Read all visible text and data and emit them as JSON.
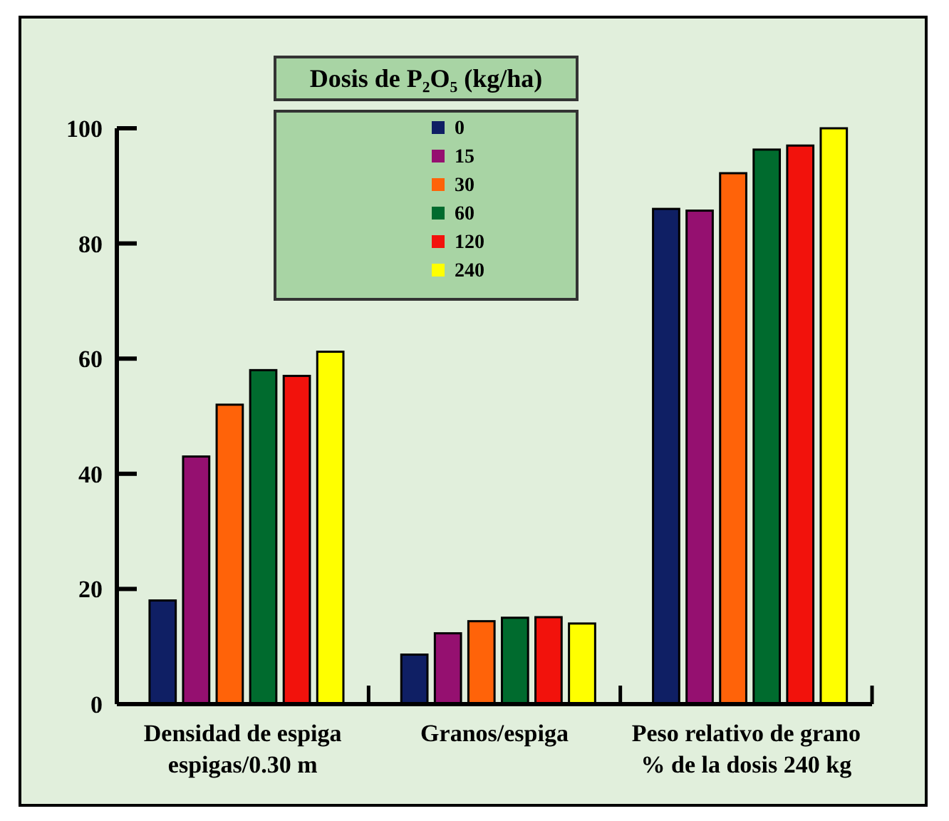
{
  "chart_data": {
    "type": "bar",
    "legend_title": "Dosis de P₂O₅ (kg/ha)",
    "legend": "top",
    "grid": false,
    "categories": [
      "Densidad de espiga\nespigas/0.30 m",
      "Granos/espiga",
      "Peso relativo de grano\n% de la dosis 240 kg"
    ],
    "ylim": [
      0,
      100
    ],
    "yticks": [
      0,
      20,
      40,
      60,
      80,
      100
    ],
    "series": [
      {
        "name": "0",
        "color": "#0f1f64",
        "values": [
          18,
          8.6,
          86
        ]
      },
      {
        "name": "15",
        "color": "#951070",
        "values": [
          43,
          12.3,
          85.7
        ]
      },
      {
        "name": "30",
        "color": "#ff6309",
        "values": [
          52,
          14.4,
          92.2
        ]
      },
      {
        "name": "60",
        "color": "#006b2e",
        "values": [
          58,
          15,
          96.3
        ]
      },
      {
        "name": "120",
        "color": "#f2120c",
        "values": [
          57,
          15.1,
          97
        ]
      },
      {
        "name": "240",
        "color": "#ffff00",
        "values": [
          61.2,
          14,
          100
        ]
      }
    ]
  }
}
